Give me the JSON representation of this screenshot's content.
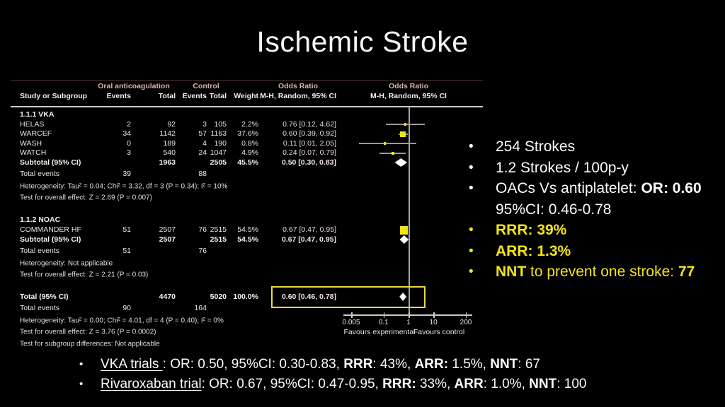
{
  "slide": {
    "title": "Ischemic Stroke"
  },
  "colors": {
    "background": "#000000",
    "accent_yellow": "#f3e416",
    "table_text": "#ece6e0",
    "header_tint": "#d9b4aa",
    "diamond": "#ffffff",
    "ci_line": "#a09a94",
    "axis": "#cfcac5",
    "highlight_box": "#e8d93c"
  },
  "forest": {
    "header": {
      "group1": "Oral anticoagulation",
      "group2": "Control",
      "or1": "Odds Ratio",
      "or2": "Odds Ratio",
      "study": "Study or Subgroup",
      "events1": "Events",
      "total1": "Total",
      "events2": "Events",
      "total2": "Total",
      "weight": "Weight",
      "mh1": "M-H, Random, 95% CI",
      "mh2": "M-H, Random, 95% CI"
    },
    "rows": [
      {
        "type": "section",
        "label": "1.1.1 VKA"
      },
      {
        "type": "study",
        "label": "HELAS",
        "e1": "2",
        "t1": "92",
        "e2": "3",
        "t2": "105",
        "weight": "2.2%",
        "or_ci": "0.76 [0.12, 4.62]"
      },
      {
        "type": "study",
        "label": "WARCEF",
        "e1": "34",
        "t1": "1142",
        "e2": "57",
        "t2": "1163",
        "weight": "37.6%",
        "or_ci": "0.60 [0.39, 0.92]"
      },
      {
        "type": "study",
        "label": "WASH",
        "e1": "0",
        "t1": "189",
        "e2": "4",
        "t2": "190",
        "weight": "0.8%",
        "or_ci": "0.11 [0.01, 2.05]"
      },
      {
        "type": "study",
        "label": "WATCH",
        "e1": "3",
        "t1": "540",
        "e2": "24",
        "t2": "1047",
        "weight": "4.9%",
        "or_ci": "0.24 [0.07, 0.79]"
      },
      {
        "type": "subtotal",
        "label": "Subtotal (95% CI)",
        "t1": "1963",
        "t2": "2505",
        "weight": "45.5%",
        "or_ci": "0.50 [0.30, 0.83]"
      },
      {
        "type": "events",
        "label": "Total events",
        "e1": "39",
        "e2": "88"
      },
      {
        "type": "meta",
        "label": "Heterogeneity: Tau² = 0.04; Chi² = 3.32, df = 3 (P = 0.34); I² = 10%"
      },
      {
        "type": "meta",
        "label": "Test for overall effect: Z = 2.69 (P = 0.007)"
      },
      {
        "type": "spacer",
        "label": ""
      },
      {
        "type": "section",
        "label": "1.1.2 NOAC"
      },
      {
        "type": "study",
        "label": "COMMANDER HF",
        "e1": "51",
        "t1": "2507",
        "e2": "76",
        "t2": "2515",
        "weight": "54.5%",
        "or_ci": "0.67 [0.47, 0.95]"
      },
      {
        "type": "subtotal",
        "label": "Subtotal (95% CI)",
        "t1": "2507",
        "t2": "2515",
        "weight": "54.5%",
        "or_ci": "0.67 [0.47, 0.95]"
      },
      {
        "type": "events",
        "label": "Total events",
        "e1": "51",
        "e2": "76"
      },
      {
        "type": "meta",
        "label": "Heterogeneity: Not applicable"
      },
      {
        "type": "meta",
        "label": "Test for overall effect: Z = 2.21 (P = 0.03)"
      },
      {
        "type": "spacer",
        "label": ""
      },
      {
        "type": "total",
        "label": "Total (95% CI)",
        "t1": "4470",
        "t2": "5020",
        "weight": "100.0%",
        "or_ci": "0.60 [0.46, 0.78]"
      },
      {
        "type": "events",
        "label": "Total events",
        "e1": "90",
        "e2": "164"
      },
      {
        "type": "meta",
        "label": "Heterogeneity: Tau² = 0.00; Chi² = 4.01, df = 4 (P = 0.40); I² = 0%"
      },
      {
        "type": "meta",
        "label": "Test for overall effect: Z = 3.76 (P = 0.0002)"
      },
      {
        "type": "meta",
        "label": "Test for subgroup differences: Not applicable"
      }
    ]
  },
  "chart_data": {
    "type": "forest",
    "title": "Ischemic Stroke",
    "comparison": "Oral anticoagulation vs Control",
    "effect_measure": "Odds Ratio, M-H, Random, 95% CI",
    "x_scale": "log",
    "x_ticks": [
      "0.005",
      "0.1",
      "1",
      "10",
      "200"
    ],
    "x_axis_left_label": "Favours experimental",
    "x_axis_right_label": "Favours control",
    "points": [
      {
        "label": "HELAS",
        "row_index": 1,
        "or": 0.76,
        "ci_low": 0.12,
        "ci_high": 4.62,
        "weight_pct": 2.2,
        "marker": "square"
      },
      {
        "label": "WARCEF",
        "row_index": 2,
        "or": 0.6,
        "ci_low": 0.39,
        "ci_high": 0.92,
        "weight_pct": 37.6,
        "marker": "square"
      },
      {
        "label": "WASH",
        "row_index": 3,
        "or": 0.11,
        "ci_low": 0.01,
        "ci_high": 2.05,
        "weight_pct": 0.8,
        "marker": "square"
      },
      {
        "label": "WATCH",
        "row_index": 4,
        "or": 0.24,
        "ci_low": 0.07,
        "ci_high": 0.79,
        "weight_pct": 4.9,
        "marker": "square"
      },
      {
        "label": "Subtotal VKA",
        "row_index": 5,
        "or": 0.5,
        "ci_low": 0.3,
        "ci_high": 0.83,
        "marker": "diamond"
      },
      {
        "label": "COMMANDER HF",
        "row_index": 11,
        "or": 0.67,
        "ci_low": 0.47,
        "ci_high": 0.95,
        "weight_pct": 54.5,
        "marker": "square"
      },
      {
        "label": "Subtotal NOAC",
        "row_index": 12,
        "or": 0.67,
        "ci_low": 0.47,
        "ci_high": 0.95,
        "marker": "diamond"
      },
      {
        "label": "Total",
        "row_index": 17,
        "or": 0.6,
        "ci_low": 0.46,
        "ci_high": 0.78,
        "marker": "diamond",
        "highlighted": true
      }
    ]
  },
  "summary_bullets": [
    {
      "color": "white",
      "segments": [
        {
          "text": "254 Strokes"
        }
      ]
    },
    {
      "color": "white",
      "segments": [
        {
          "text": "1.2 Strokes / 100p-y"
        }
      ]
    },
    {
      "color": "white",
      "segments": [
        {
          "text": "OACs Vs antiplatelet: "
        },
        {
          "text": "OR: 0.60",
          "bold": true
        },
        {
          "text": " 95%CI: 0.46-0.78"
        }
      ]
    },
    {
      "color": "yellow",
      "segments": [
        {
          "text": "RRR: 39%",
          "bold": true
        }
      ]
    },
    {
      "color": "yellow",
      "segments": [
        {
          "text": "ARR: 1.3%",
          "bold": true
        }
      ]
    },
    {
      "color": "yellow",
      "segments": [
        {
          "text": "NNT",
          "bold": true
        },
        {
          "text": " to prevent one stroke: "
        },
        {
          "text": "77",
          "bold": true
        }
      ]
    }
  ],
  "trial_bullets": [
    {
      "segments": [
        {
          "text": "VKA trials ",
          "underline": true
        },
        {
          "text": ": OR: 0.50, 95%CI: 0.30-0.83, "
        },
        {
          "text": "RRR",
          "bold": true
        },
        {
          "text": ": 43%, "
        },
        {
          "text": "ARR:",
          "bold": true
        },
        {
          "text": " 1.5%, "
        },
        {
          "text": "NNT",
          "bold": true
        },
        {
          "text": ": 67"
        }
      ]
    },
    {
      "segments": [
        {
          "text": "Rivaroxaban trial",
          "underline": true
        },
        {
          "text": ": OR: 0.67, 95%CI: 0.47-0.95, "
        },
        {
          "text": "RRR:",
          "bold": true
        },
        {
          "text": " 33%, "
        },
        {
          "text": "ARR",
          "bold": true
        },
        {
          "text": ": 1.0%, "
        },
        {
          "text": "NNT",
          "bold": true
        },
        {
          "text": ": 100"
        }
      ]
    }
  ]
}
